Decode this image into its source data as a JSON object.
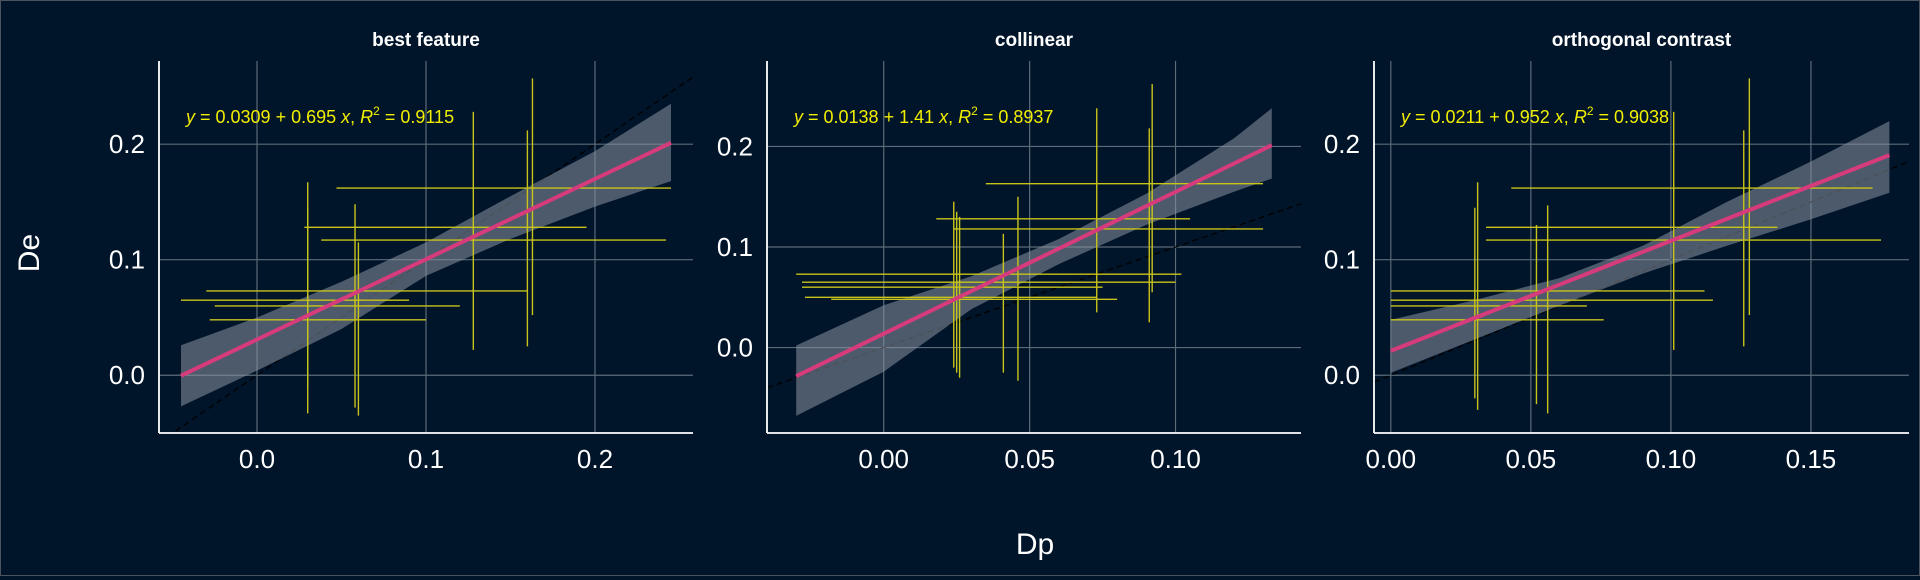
{
  "colors": {
    "background": "#00142a",
    "axis": "#ffffff",
    "grid": "#5c6b78",
    "errorbar": "#c8c41a",
    "fit_line": "#d63b7c",
    "ribbon": "#8a93a0",
    "ref_line": "#000000",
    "equation": "#f2ee00",
    "text": "#ffffff"
  },
  "shared": {
    "xlabel": "Dp",
    "ylabel": "De"
  },
  "chart_data": [
    {
      "type": "scatter",
      "title": "best feature",
      "equation": {
        "slope_text": "0.695",
        "intercept_text": "0.0309",
        "r2_text": "0.9115"
      },
      "fit": {
        "intercept": 0.0309,
        "slope": 0.695
      },
      "ribbon": {
        "x": [
          -0.045,
          0.0,
          0.05,
          0.1,
          0.15,
          0.2,
          0.245
        ],
        "lower": [
          -0.027,
          0.004,
          0.04,
          0.086,
          0.118,
          0.146,
          0.168
        ],
        "upper": [
          0.026,
          0.05,
          0.081,
          0.115,
          0.155,
          0.194,
          0.235
        ]
      },
      "points": [
        {
          "x": 0.03,
          "y": 0.073,
          "xlo": -0.03,
          "xhi": 0.16,
          "ylo": -0.01,
          "yhi": 0.145
        },
        {
          "x": 0.03,
          "y": 0.065,
          "xlo": -0.045,
          "xhi": 0.09,
          "ylo": -0.033,
          "yhi": 0.167
        },
        {
          "x": 0.058,
          "y": 0.06,
          "xlo": -0.025,
          "xhi": 0.12,
          "ylo": -0.028,
          "yhi": 0.148
        },
        {
          "x": 0.06,
          "y": 0.048,
          "xlo": -0.028,
          "xhi": 0.1,
          "ylo": -0.035,
          "yhi": 0.115
        },
        {
          "x": 0.128,
          "y": 0.128,
          "xlo": 0.028,
          "xhi": 0.195,
          "ylo": 0.022,
          "yhi": 0.228
        },
        {
          "x": 0.16,
          "y": 0.117,
          "xlo": 0.038,
          "xhi": 0.242,
          "ylo": 0.025,
          "yhi": 0.212
        },
        {
          "x": 0.163,
          "y": 0.162,
          "xlo": 0.047,
          "xhi": 0.245,
          "ylo": 0.052,
          "yhi": 0.257
        }
      ],
      "xlim": [
        -0.058,
        0.258
      ],
      "ylim": [
        -0.05,
        0.272
      ],
      "xticks": [
        0.0,
        0.1,
        0.2
      ],
      "xtick_labels": [
        "0.0",
        "0.1",
        "0.2"
      ],
      "yticks": [
        0.0,
        0.1,
        0.2
      ],
      "ytick_labels": [
        "0.0",
        "0.1",
        "0.2"
      ]
    },
    {
      "type": "scatter",
      "title": "collinear",
      "equation": {
        "slope_text": "1.41",
        "intercept_text": "0.0138",
        "r2_text": "0.8937"
      },
      "fit": {
        "intercept": 0.0138,
        "slope": 1.41
      },
      "ribbon": {
        "x": [
          -0.03,
          0.0,
          0.03,
          0.06,
          0.09,
          0.12,
          0.133
        ],
        "lower": [
          -0.068,
          -0.024,
          0.038,
          0.083,
          0.122,
          0.155,
          0.168
        ],
        "upper": [
          0.002,
          0.042,
          0.071,
          0.108,
          0.153,
          0.208,
          0.238
        ]
      },
      "points": [
        {
          "x": 0.024,
          "y": 0.073,
          "xlo": -0.03,
          "xhi": 0.102,
          "ylo": -0.02,
          "yhi": 0.145
        },
        {
          "x": 0.025,
          "y": 0.065,
          "xlo": -0.028,
          "xhi": 0.1,
          "ylo": -0.025,
          "yhi": 0.135
        },
        {
          "x": 0.026,
          "y": 0.06,
          "xlo": -0.028,
          "xhi": 0.075,
          "ylo": -0.03,
          "yhi": 0.13
        },
        {
          "x": 0.041,
          "y": 0.05,
          "xlo": -0.027,
          "xhi": 0.073,
          "ylo": -0.025,
          "yhi": 0.113
        },
        {
          "x": 0.046,
          "y": 0.048,
          "xlo": -0.018,
          "xhi": 0.08,
          "ylo": -0.033,
          "yhi": 0.15
        },
        {
          "x": 0.073,
          "y": 0.128,
          "xlo": 0.018,
          "xhi": 0.105,
          "ylo": 0.035,
          "yhi": 0.238
        },
        {
          "x": 0.091,
          "y": 0.118,
          "xlo": 0.024,
          "xhi": 0.13,
          "ylo": 0.025,
          "yhi": 0.218
        },
        {
          "x": 0.092,
          "y": 0.163,
          "xlo": 0.035,
          "xhi": 0.13,
          "ylo": 0.055,
          "yhi": 0.262
        }
      ],
      "xlim": [
        -0.04,
        0.143
      ],
      "ylim": [
        -0.085,
        0.285
      ],
      "xticks": [
        0.0,
        0.05,
        0.1
      ],
      "xtick_labels": [
        "0.00",
        "0.05",
        "0.10"
      ],
      "yticks": [
        0.0,
        0.1,
        0.2
      ],
      "ytick_labels": [
        "0.0",
        "0.1",
        "0.2"
      ]
    },
    {
      "type": "scatter",
      "title": "orthogonal contrast",
      "equation": {
        "slope_text": "0.952",
        "intercept_text": "0.0211",
        "r2_text": "0.9038"
      },
      "fit": {
        "intercept": 0.0211,
        "slope": 0.952
      },
      "ribbon": {
        "x": [
          0.0,
          0.03,
          0.06,
          0.09,
          0.12,
          0.15,
          0.178
        ],
        "lower": [
          0.002,
          0.031,
          0.06,
          0.088,
          0.112,
          0.135,
          0.158
        ],
        "upper": [
          0.048,
          0.065,
          0.084,
          0.112,
          0.15,
          0.185,
          0.22
        ]
      },
      "points": [
        {
          "x": 0.03,
          "y": 0.073,
          "xlo": 0.0,
          "xhi": 0.112,
          "ylo": -0.02,
          "yhi": 0.145
        },
        {
          "x": 0.031,
          "y": 0.065,
          "xlo": 0.0,
          "xhi": 0.115,
          "ylo": -0.03,
          "yhi": 0.167
        },
        {
          "x": 0.052,
          "y": 0.06,
          "xlo": 0.0,
          "xhi": 0.07,
          "ylo": -0.025,
          "yhi": 0.13
        },
        {
          "x": 0.056,
          "y": 0.048,
          "xlo": 0.0,
          "xhi": 0.076,
          "ylo": -0.033,
          "yhi": 0.147
        },
        {
          "x": 0.101,
          "y": 0.128,
          "xlo": 0.034,
          "xhi": 0.138,
          "ylo": 0.022,
          "yhi": 0.228
        },
        {
          "x": 0.126,
          "y": 0.117,
          "xlo": 0.034,
          "xhi": 0.175,
          "ylo": 0.025,
          "yhi": 0.212
        },
        {
          "x": 0.128,
          "y": 0.162,
          "xlo": 0.043,
          "xhi": 0.172,
          "ylo": 0.052,
          "yhi": 0.257
        }
      ],
      "xlim": [
        -0.006,
        0.185
      ],
      "ylim": [
        -0.05,
        0.272
      ],
      "xticks": [
        0.0,
        0.05,
        0.1,
        0.15
      ],
      "xtick_labels": [
        "0.00",
        "0.05",
        "0.10",
        "0.15"
      ],
      "yticks": [
        0.0,
        0.1,
        0.2
      ],
      "ytick_labels": [
        "0.0",
        "0.1",
        "0.2"
      ]
    }
  ]
}
